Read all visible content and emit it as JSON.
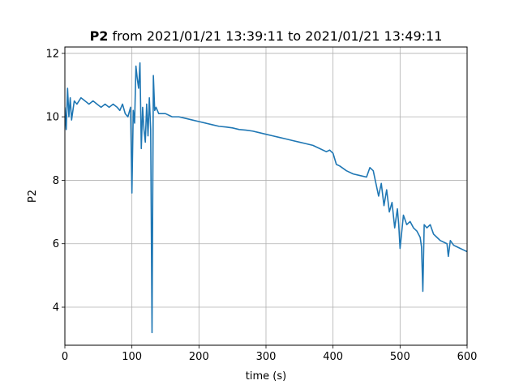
{
  "chart_data": {
    "type": "line",
    "title_bold": "P2",
    "title_rest": " from 2021/01/21 13:39:11 to 2021/01/21 13:49:11",
    "xlabel": "time (s)",
    "ylabel": "P2",
    "xlim": [
      0,
      600
    ],
    "ylim": [
      2.8,
      12.2
    ],
    "xticks": [
      0,
      100,
      200,
      300,
      400,
      500,
      600
    ],
    "yticks": [
      4,
      6,
      8,
      10,
      12
    ],
    "grid": true,
    "color": "#1f77b4",
    "series": [
      {
        "name": "",
        "x": [
          0,
          2,
          4,
          6,
          8,
          10,
          14,
          18,
          24,
          30,
          36,
          42,
          48,
          54,
          60,
          66,
          72,
          78,
          82,
          86,
          90,
          94,
          98,
          100,
          102,
          104,
          106,
          108,
          110,
          112,
          114,
          116,
          118,
          120,
          122,
          124,
          126,
          128,
          130,
          132,
          134,
          136,
          140,
          150,
          160,
          170,
          180,
          190,
          200,
          210,
          220,
          230,
          240,
          250,
          260,
          270,
          280,
          290,
          300,
          310,
          320,
          330,
          340,
          350,
          360,
          370,
          380,
          390,
          395,
          400,
          405,
          410,
          420,
          430,
          440,
          450,
          455,
          460,
          465,
          468,
          472,
          476,
          480,
          484,
          488,
          492,
          496,
          498,
          500,
          505,
          510,
          515,
          520,
          525,
          530,
          532,
          534,
          536,
          540,
          545,
          550,
          555,
          560,
          565,
          570,
          572,
          575,
          580,
          585,
          590,
          595,
          600
        ],
        "y": [
          10.3,
          9.6,
          10.9,
          10.0,
          10.6,
          9.9,
          10.5,
          10.4,
          10.6,
          10.5,
          10.4,
          10.5,
          10.4,
          10.3,
          10.4,
          10.3,
          10.4,
          10.3,
          10.2,
          10.4,
          10.1,
          10.0,
          10.3,
          7.6,
          10.2,
          9.8,
          11.6,
          11.2,
          10.9,
          11.7,
          9.0,
          10.3,
          9.6,
          9.2,
          10.4,
          9.4,
          10.6,
          9.6,
          3.2,
          11.3,
          10.2,
          10.3,
          10.1,
          10.1,
          10.0,
          10.0,
          9.95,
          9.9,
          9.85,
          9.8,
          9.75,
          9.7,
          9.68,
          9.65,
          9.6,
          9.58,
          9.55,
          9.5,
          9.45,
          9.4,
          9.35,
          9.3,
          9.25,
          9.2,
          9.15,
          9.1,
          9.0,
          8.9,
          8.95,
          8.85,
          8.5,
          8.45,
          8.3,
          8.2,
          8.15,
          8.1,
          8.4,
          8.3,
          7.8,
          7.5,
          7.9,
          7.2,
          7.7,
          7.0,
          7.3,
          6.5,
          7.1,
          6.6,
          5.85,
          6.9,
          6.6,
          6.7,
          6.5,
          6.4,
          6.2,
          5.9,
          4.5,
          6.6,
          6.5,
          6.6,
          6.3,
          6.2,
          6.1,
          6.05,
          6.0,
          5.6,
          6.1,
          5.95,
          5.9,
          5.85,
          5.8,
          5.75
        ]
      }
    ]
  }
}
